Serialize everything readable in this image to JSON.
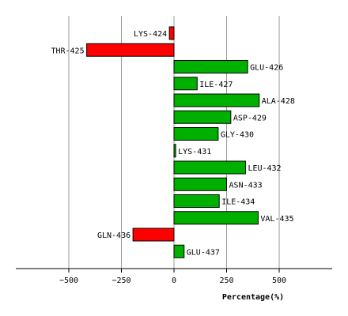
{
  "chart_data": {
    "type": "bar",
    "orientation": "horizontal",
    "xlabel": "Percentage(%)",
    "xlim": [
      -750,
      750
    ],
    "xticks": [
      -500,
      -250,
      0,
      250,
      500
    ],
    "grid": "vertical",
    "colors": {
      "positive": "#00b000",
      "negative": "#ff0000"
    },
    "categories": [
      "LYS-424",
      "THR-425",
      "GLU-426",
      "ILE-427",
      "ALA-428",
      "ASP-429",
      "GLY-430",
      "LYS-431",
      "LEU-432",
      "ASN-433",
      "ILE-434",
      "VAL-435",
      "GLN-436",
      "GLU-437"
    ],
    "values": [
      -22,
      -415,
      350,
      110,
      405,
      270,
      210,
      8,
      340,
      250,
      215,
      400,
      -195,
      48
    ]
  }
}
